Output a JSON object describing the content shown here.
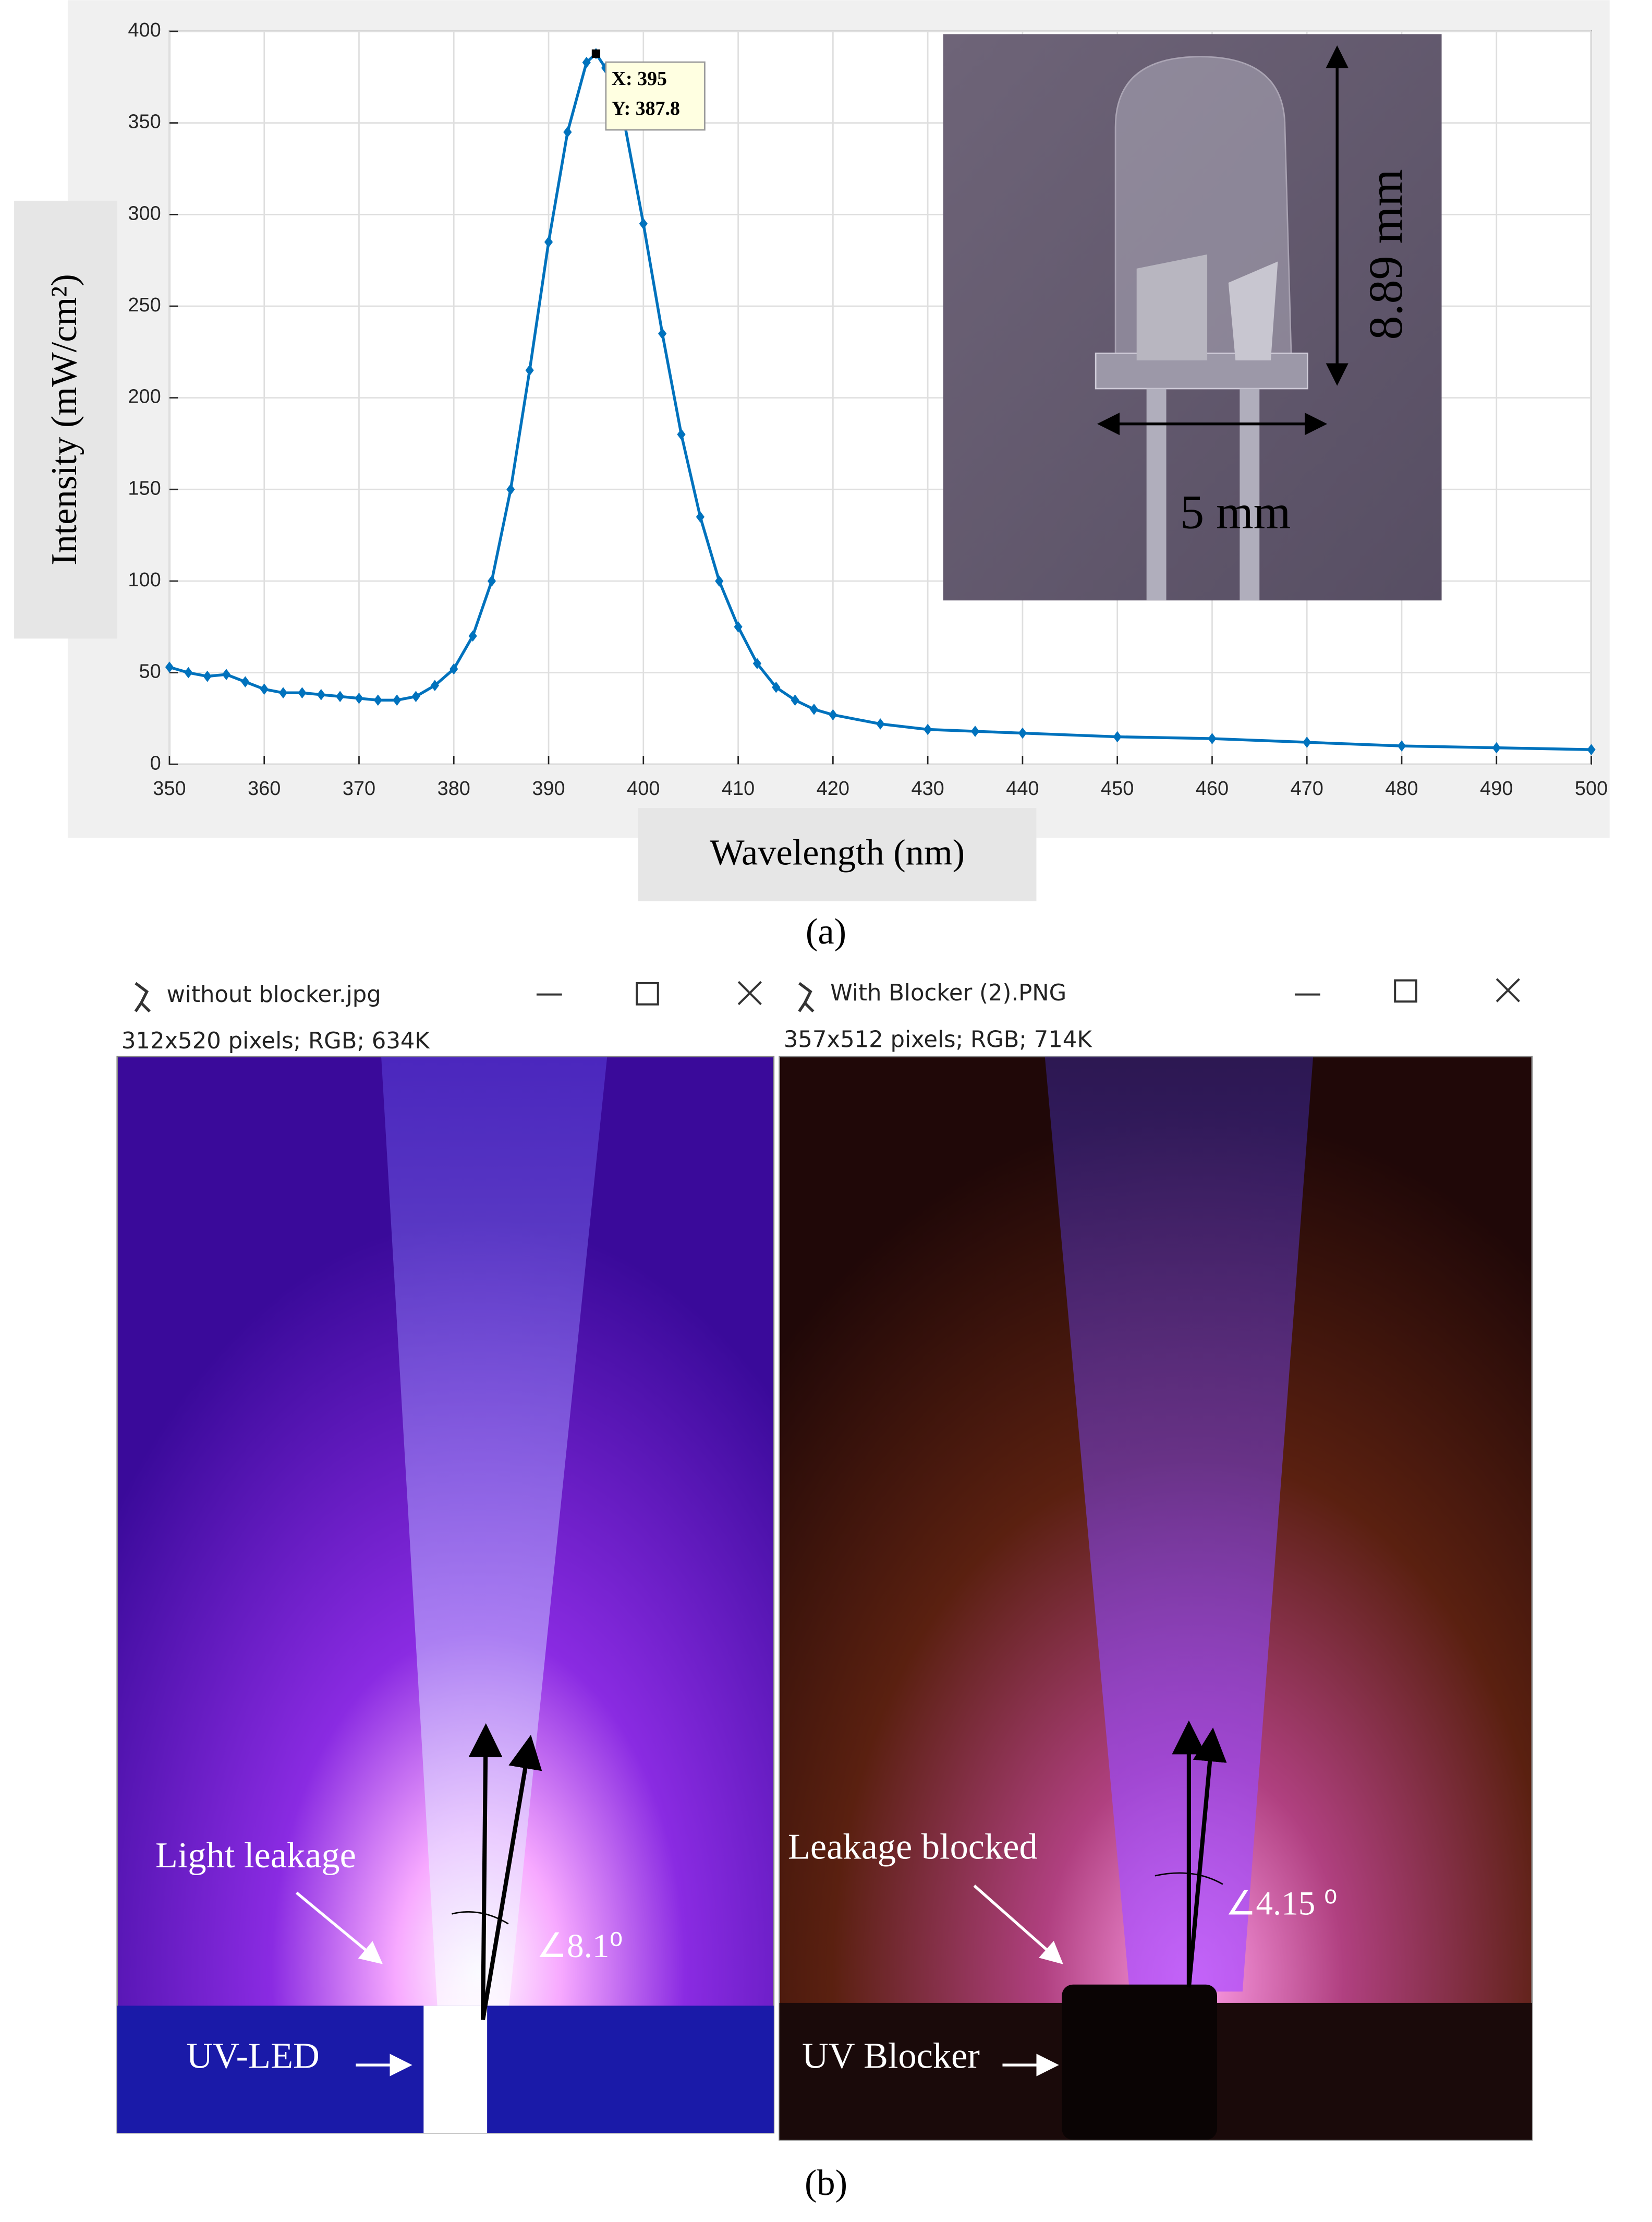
{
  "chart_data": {
    "type": "line",
    "x_label": "Wavelength (nm)",
    "y_label": "Intensity (mW/cm²)",
    "x": [
      350,
      352,
      354,
      356,
      358,
      360,
      362,
      364,
      366,
      368,
      370,
      372,
      374,
      376,
      378,
      380,
      382,
      384,
      386,
      388,
      390,
      392,
      394,
      395,
      396,
      398,
      400,
      402,
      404,
      406,
      408,
      410,
      412,
      414,
      416,
      418,
      420,
      425,
      430,
      435,
      440,
      450,
      460,
      470,
      480,
      490,
      500
    ],
    "values": [
      53,
      50,
      48,
      49,
      45,
      41,
      39,
      39,
      38,
      37,
      36,
      35,
      35,
      37,
      43,
      52,
      70,
      100,
      150,
      215,
      285,
      345,
      383,
      387.8,
      380,
      350,
      295,
      235,
      180,
      135,
      100,
      75,
      55,
      42,
      35,
      30,
      27,
      22,
      19,
      18,
      17,
      15,
      14,
      12,
      10,
      9,
      8
    ],
    "color": "#0072bd",
    "xlim": [
      350,
      500
    ],
    "xticks": [
      350,
      360,
      370,
      380,
      390,
      400,
      410,
      420,
      430,
      440,
      450,
      460,
      470,
      480,
      490,
      500
    ],
    "ylim": [
      0,
      400
    ],
    "yticks": [
      0,
      50,
      100,
      150,
      200,
      250,
      300,
      350,
      400
    ],
    "grid": true,
    "annotation": {
      "x_text": "X: 395",
      "y_text": "Y: 387.8",
      "x": 395,
      "y": 387.8
    }
  },
  "inset": {
    "height_label": "8.89 mm",
    "width_label": "5 mm"
  },
  "panel_a_label": "(a)",
  "panel_b": {
    "label": "(b)",
    "left": {
      "title": "without blocker.jpg",
      "info": "312x520 pixels; RGB; 634K",
      "leak_label": "Light leakage",
      "source_label": "UV-LED",
      "angle_label": "∠8.1⁰"
    },
    "right": {
      "title": "With Blocker (2).PNG",
      "info": "357x512 pixels; RGB; 714K",
      "leak_label": "Leakage blocked",
      "source_label": "UV Blocker",
      "angle_label": "∠4.15 ⁰"
    }
  }
}
